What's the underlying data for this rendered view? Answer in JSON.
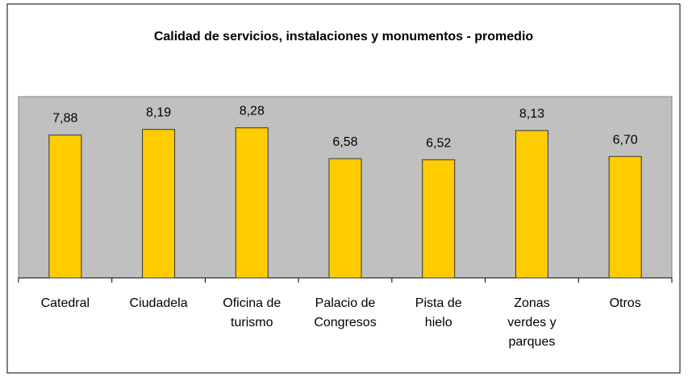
{
  "chart_data": {
    "type": "bar",
    "title": "Calidad de servicios, instalaciones y monumentos - promedio",
    "categories": [
      "Catedral",
      "Ciudadela",
      "Oficina de turismo",
      "Palacio de Congresos",
      "Pista de hielo",
      "Zonas verdes y parques",
      "Otros"
    ],
    "values": [
      7.88,
      8.19,
      8.28,
      6.58,
      6.52,
      8.13,
      6.7
    ],
    "value_labels": [
      "7,88",
      "8,19",
      "8,28",
      "6,58",
      "6,52",
      "8,13",
      "6,70"
    ],
    "color": "#ffcc00",
    "ylim": [
      0,
      10
    ]
  }
}
